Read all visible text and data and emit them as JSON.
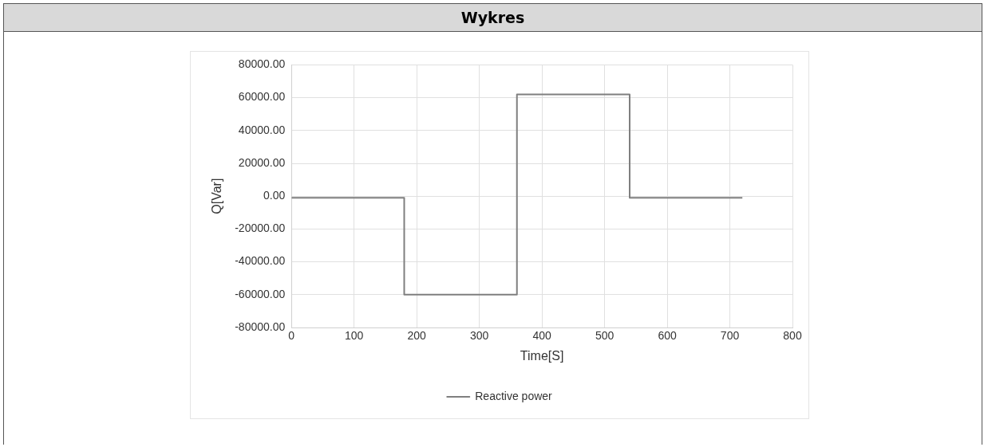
{
  "chart_data": {
    "type": "line",
    "title": "Wykres",
    "xlabel": "Time[S]",
    "ylabel": "Q[Var]",
    "series": [
      {
        "name": "Reactive power",
        "color": "#7f7f7f",
        "x": [
          0,
          180,
          180,
          360,
          360,
          540,
          540,
          720
        ],
        "values": [
          -1000,
          -1000,
          -60000,
          -60000,
          62000,
          62000,
          -1000,
          -1000
        ]
      }
    ],
    "xlim": [
      0,
      800
    ],
    "xticks": [
      0,
      100,
      200,
      300,
      400,
      500,
      600,
      700,
      800
    ],
    "ylim": [
      -80000,
      80000
    ],
    "yticks": [
      {
        "value": -80000,
        "label": "-80000.00"
      },
      {
        "value": -60000,
        "label": "-60000.00"
      },
      {
        "value": -40000,
        "label": "-40000.00"
      },
      {
        "value": -20000,
        "label": "-20000.00"
      },
      {
        "value": 0,
        "label": "0.00"
      },
      {
        "value": 20000,
        "label": "20000.00"
      },
      {
        "value": 40000,
        "label": "40000.00"
      },
      {
        "value": 60000,
        "label": "60000.00"
      },
      {
        "value": 80000,
        "label": "80000.00"
      }
    ],
    "grid": true,
    "legend": "bottom",
    "marker": "none",
    "line_style": "solid"
  }
}
